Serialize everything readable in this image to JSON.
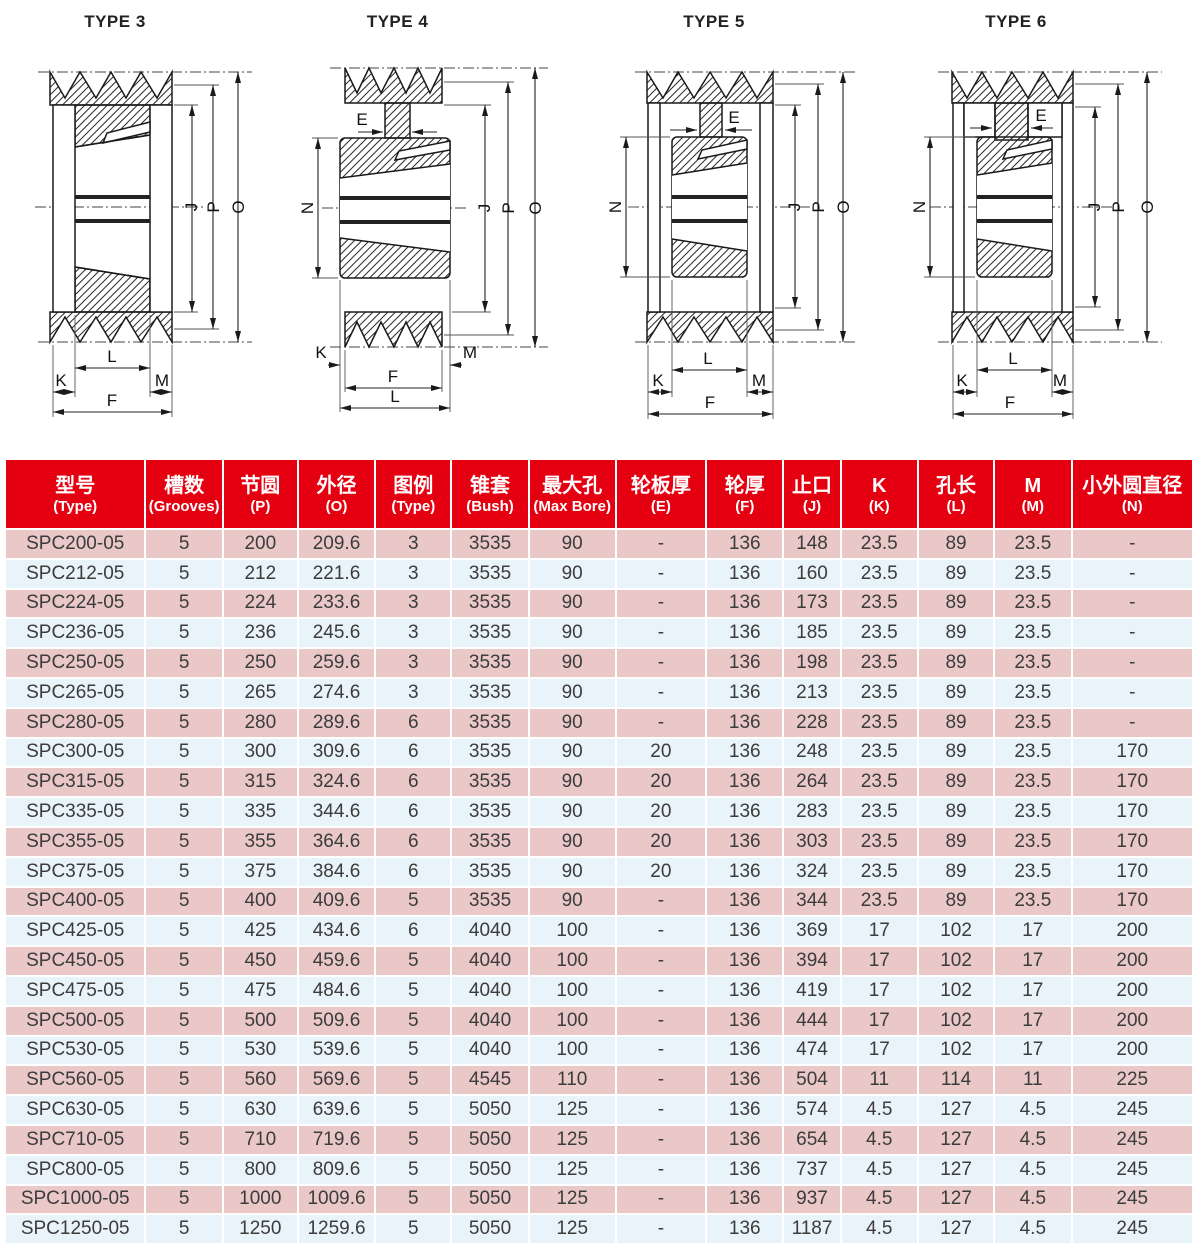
{
  "colors": {
    "header_bg": "#e50011",
    "header_text": "#ffffff",
    "row_pink": "#eac8c8",
    "row_blue": "#e9f3fa",
    "cell_text": "#3c3c3c",
    "line_color": "#1a1a1a"
  },
  "drawings": [
    {
      "title": "TYPE 3",
      "labels": {
        "J": "J",
        "P": "P",
        "O": "O",
        "L": "L",
        "K": "K",
        "M": "M",
        "F": "F"
      }
    },
    {
      "title": "TYPE 4",
      "labels": {
        "E": "E",
        "N": "N",
        "J": "J",
        "P": "P",
        "O": "O",
        "K": "K",
        "M": "M",
        "F": "F",
        "L": "L"
      }
    },
    {
      "title": "TYPE 5",
      "labels": {
        "E": "E",
        "N": "N",
        "J": "J",
        "P": "P",
        "O": "O",
        "L": "L",
        "K": "K",
        "M": "M",
        "F": "F"
      }
    },
    {
      "title": "TYPE 6",
      "labels": {
        "E": "E",
        "N": "N",
        "J": "J",
        "P": "P",
        "O": "O",
        "L": "L",
        "K": "K",
        "M": "M",
        "F": "F"
      }
    }
  ],
  "table": {
    "headers": [
      {
        "zh": "型号",
        "en": "(Type)"
      },
      {
        "zh": "槽数",
        "en": "(Grooves)"
      },
      {
        "zh": "节圆",
        "en": "(P)"
      },
      {
        "zh": "外径",
        "en": "(O)"
      },
      {
        "zh": "图例",
        "en": "(Type)"
      },
      {
        "zh": "锥套",
        "en": "(Bush)"
      },
      {
        "zh": "最大孔",
        "en": "(Max Bore)"
      },
      {
        "zh": "轮板厚",
        "en": "(E)"
      },
      {
        "zh": "轮厚",
        "en": "(F)"
      },
      {
        "zh": "止口",
        "en": "(J)"
      },
      {
        "zh": "K",
        "en": "(K)"
      },
      {
        "zh": "孔长",
        "en": "(L)"
      },
      {
        "zh": "M",
        "en": "(M)"
      },
      {
        "zh": "小外圆直径",
        "en": "(N)"
      }
    ],
    "rows": [
      [
        "SPC200-05",
        "5",
        "200",
        "209.6",
        "3",
        "3535",
        "90",
        "-",
        "136",
        "148",
        "23.5",
        "89",
        "23.5",
        "-"
      ],
      [
        "SPC212-05",
        "5",
        "212",
        "221.6",
        "3",
        "3535",
        "90",
        "-",
        "136",
        "160",
        "23.5",
        "89",
        "23.5",
        "-"
      ],
      [
        "SPC224-05",
        "5",
        "224",
        "233.6",
        "3",
        "3535",
        "90",
        "-",
        "136",
        "173",
        "23.5",
        "89",
        "23.5",
        "-"
      ],
      [
        "SPC236-05",
        "5",
        "236",
        "245.6",
        "3",
        "3535",
        "90",
        "-",
        "136",
        "185",
        "23.5",
        "89",
        "23.5",
        "-"
      ],
      [
        "SPC250-05",
        "5",
        "250",
        "259.6",
        "3",
        "3535",
        "90",
        "-",
        "136",
        "198",
        "23.5",
        "89",
        "23.5",
        "-"
      ],
      [
        "SPC265-05",
        "5",
        "265",
        "274.6",
        "3",
        "3535",
        "90",
        "-",
        "136",
        "213",
        "23.5",
        "89",
        "23.5",
        "-"
      ],
      [
        "SPC280-05",
        "5",
        "280",
        "289.6",
        "6",
        "3535",
        "90",
        "-",
        "136",
        "228",
        "23.5",
        "89",
        "23.5",
        "-"
      ],
      [
        "SPC300-05",
        "5",
        "300",
        "309.6",
        "6",
        "3535",
        "90",
        "20",
        "136",
        "248",
        "23.5",
        "89",
        "23.5",
        "170"
      ],
      [
        "SPC315-05",
        "5",
        "315",
        "324.6",
        "6",
        "3535",
        "90",
        "20",
        "136",
        "264",
        "23.5",
        "89",
        "23.5",
        "170"
      ],
      [
        "SPC335-05",
        "5",
        "335",
        "344.6",
        "6",
        "3535",
        "90",
        "20",
        "136",
        "283",
        "23.5",
        "89",
        "23.5",
        "170"
      ],
      [
        "SPC355-05",
        "5",
        "355",
        "364.6",
        "6",
        "3535",
        "90",
        "20",
        "136",
        "303",
        "23.5",
        "89",
        "23.5",
        "170"
      ],
      [
        "SPC375-05",
        "5",
        "375",
        "384.6",
        "6",
        "3535",
        "90",
        "20",
        "136",
        "324",
        "23.5",
        "89",
        "23.5",
        "170"
      ],
      [
        "SPC400-05",
        "5",
        "400",
        "409.6",
        "5",
        "3535",
        "90",
        "-",
        "136",
        "344",
        "23.5",
        "89",
        "23.5",
        "170"
      ],
      [
        "SPC425-05",
        "5",
        "425",
        "434.6",
        "6",
        "4040",
        "100",
        "-",
        "136",
        "369",
        "17",
        "102",
        "17",
        "200"
      ],
      [
        "SPC450-05",
        "5",
        "450",
        "459.6",
        "5",
        "4040",
        "100",
        "-",
        "136",
        "394",
        "17",
        "102",
        "17",
        "200"
      ],
      [
        "SPC475-05",
        "5",
        "475",
        "484.6",
        "5",
        "4040",
        "100",
        "-",
        "136",
        "419",
        "17",
        "102",
        "17",
        "200"
      ],
      [
        "SPC500-05",
        "5",
        "500",
        "509.6",
        "5",
        "4040",
        "100",
        "-",
        "136",
        "444",
        "17",
        "102",
        "17",
        "200"
      ],
      [
        "SPC530-05",
        "5",
        "530",
        "539.6",
        "5",
        "4040",
        "100",
        "-",
        "136",
        "474",
        "17",
        "102",
        "17",
        "200"
      ],
      [
        "SPC560-05",
        "5",
        "560",
        "569.6",
        "5",
        "4545",
        "110",
        "-",
        "136",
        "504",
        "11",
        "114",
        "11",
        "225"
      ],
      [
        "SPC630-05",
        "5",
        "630",
        "639.6",
        "5",
        "5050",
        "125",
        "-",
        "136",
        "574",
        "4.5",
        "127",
        "4.5",
        "245"
      ],
      [
        "SPC710-05",
        "5",
        "710",
        "719.6",
        "5",
        "5050",
        "125",
        "-",
        "136",
        "654",
        "4.5",
        "127",
        "4.5",
        "245"
      ],
      [
        "SPC800-05",
        "5",
        "800",
        "809.6",
        "5",
        "5050",
        "125",
        "-",
        "136",
        "737",
        "4.5",
        "127",
        "4.5",
        "245"
      ],
      [
        "SPC1000-05",
        "5",
        "1000",
        "1009.6",
        "5",
        "5050",
        "125",
        "-",
        "136",
        "937",
        "4.5",
        "127",
        "4.5",
        "245"
      ],
      [
        "SPC1250-05",
        "5",
        "1250",
        "1259.6",
        "5",
        "5050",
        "125",
        "-",
        "136",
        "1187",
        "4.5",
        "127",
        "4.5",
        "245"
      ]
    ]
  }
}
